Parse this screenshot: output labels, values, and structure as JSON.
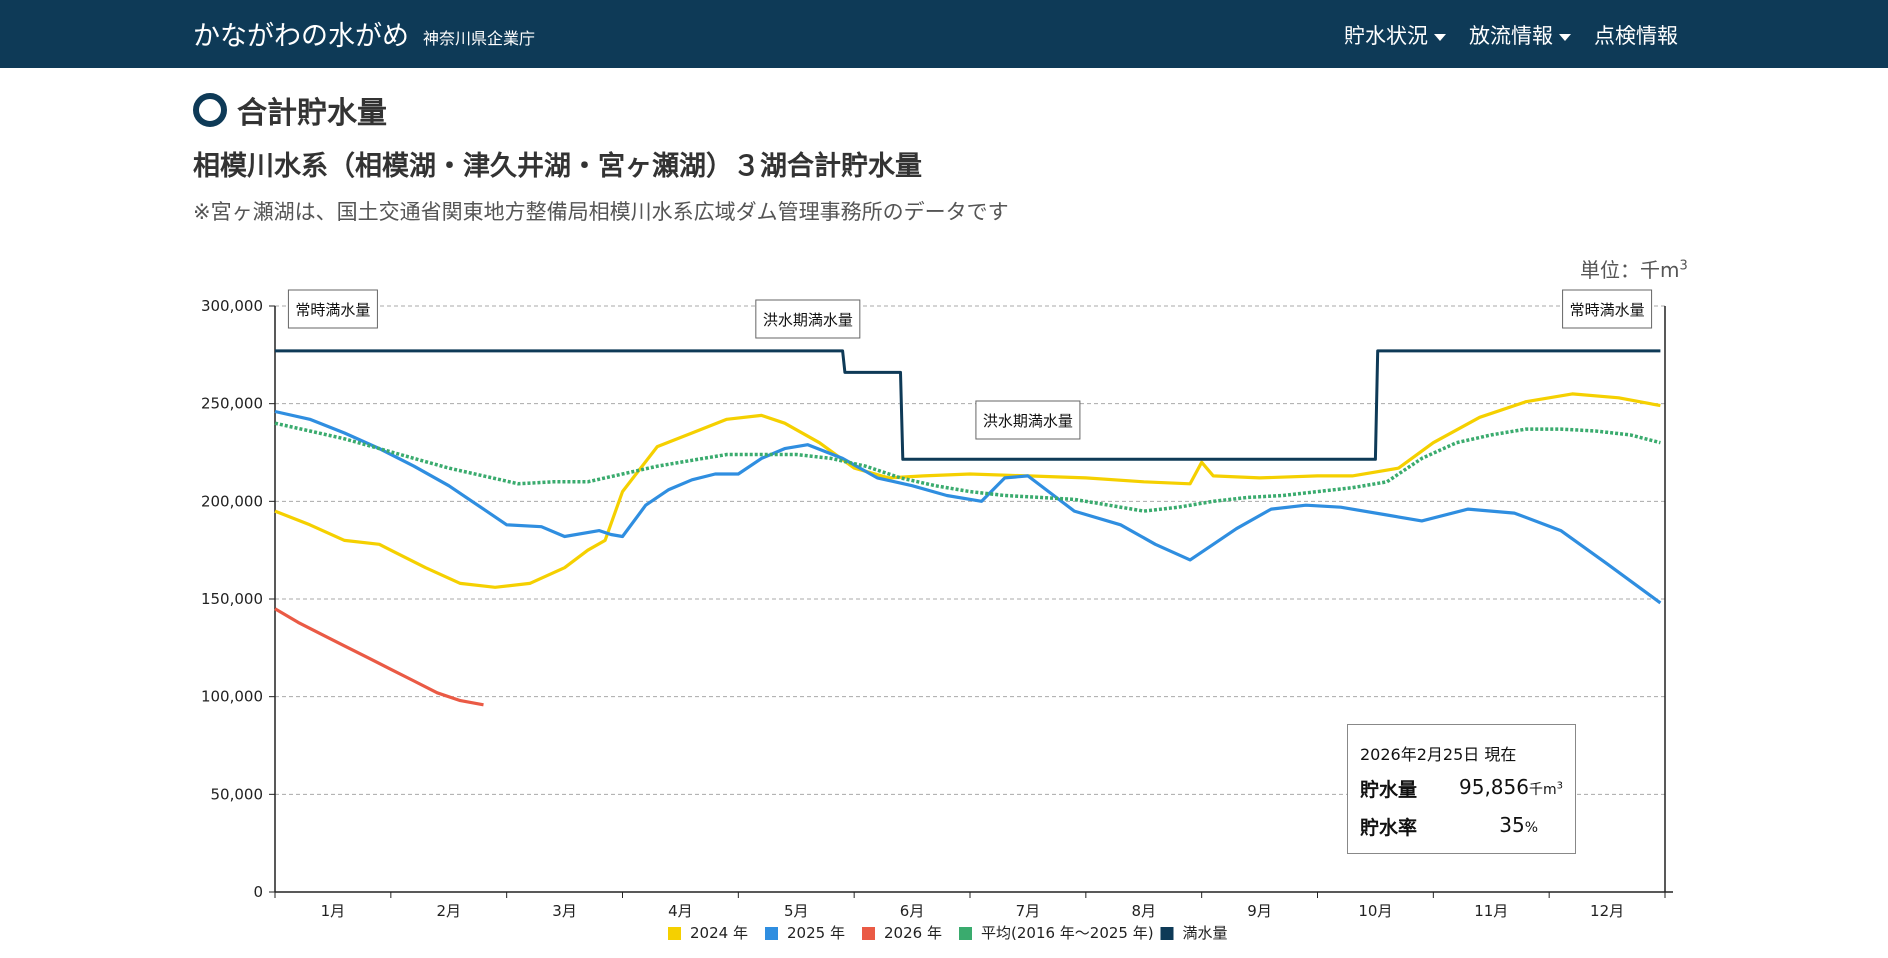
{
  "header": {
    "brand": "かながわの水がめ",
    "brand_sub": "神奈川県企業庁",
    "nav": [
      {
        "label": "貯水状況",
        "dropdown": true
      },
      {
        "label": "放流情報",
        "dropdown": true
      },
      {
        "label": "点検情報",
        "dropdown": false
      }
    ]
  },
  "page": {
    "section_title": "合計貯水量",
    "subtitle": "相模川水系（相模湖・津久井湖・宮ヶ瀬湖）３湖合計貯水量",
    "note": "※宮ヶ瀬湖は、国土交通省関東地方整備局相模川水系広域ダム管理事務所のデータです",
    "unit_label": "単位：千m",
    "unit_sup": "3"
  },
  "info_box": {
    "date": "2026年2月25日 現在",
    "storage_label": "貯水量",
    "storage_value": "95,856",
    "storage_unit": "千m",
    "storage_unit_sup": "3",
    "rate_label": "貯水率",
    "rate_value": "35",
    "rate_unit": "%"
  },
  "colors": {
    "navbar": "#0e3a57",
    "y2024": "#f5d000",
    "y2025": "#2f8ee0",
    "y2026": "#ea5a45",
    "avg": "#3aab6e",
    "full": "#0e3a57"
  },
  "chart_data": {
    "type": "line",
    "ylim": [
      0,
      300000
    ],
    "yticks": [
      "0",
      "50,000",
      "100,000",
      "150,000",
      "200,000",
      "250,000",
      "300,000"
    ],
    "months": [
      "1月",
      "2月",
      "3月",
      "4月",
      "5月",
      "6月",
      "7月",
      "8月",
      "9月",
      "10月",
      "11月",
      "12月"
    ],
    "grid": "horizontal dashed",
    "legend_position": "bottom",
    "annotations": [
      {
        "text": "常時満水量",
        "x": 1.5
      },
      {
        "text": "洪水期満水量",
        "x": 5.6
      },
      {
        "text": "洪水期満水量",
        "x": 7.5
      },
      {
        "text": "常時満水量",
        "x": 12.5
      }
    ],
    "series": [
      {
        "name": "2024 年",
        "color_key": "y2024",
        "style": "solid",
        "x": [
          1,
          1.3,
          1.6,
          1.9,
          2.0,
          2.3,
          2.6,
          2.9,
          3.2,
          3.5,
          3.7,
          3.85,
          4.0,
          4.3,
          4.6,
          4.9,
          5.2,
          5.4,
          5.7,
          6.0,
          6.3,
          6.6,
          7.0,
          7.5,
          8.0,
          8.5,
          8.9,
          9.0,
          9.1,
          9.5,
          10.0,
          10.3,
          10.7,
          11.0,
          11.4,
          11.8,
          12.2,
          12.6,
          12.96
        ],
        "y": [
          195000,
          188000,
          180000,
          178000,
          175000,
          166000,
          158000,
          156000,
          158000,
          166000,
          175000,
          180000,
          205000,
          228000,
          235000,
          242000,
          244000,
          240000,
          230000,
          217000,
          212000,
          213000,
          214000,
          213000,
          212000,
          210000,
          209000,
          220000,
          213000,
          212000,
          213000,
          213000,
          217000,
          230000,
          243000,
          251000,
          255000,
          253000,
          249000
        ]
      },
      {
        "name": "2025 年",
        "color_key": "y2025",
        "style": "solid",
        "x": [
          1,
          1.3,
          1.6,
          1.9,
          2.2,
          2.5,
          2.8,
          3.0,
          3.3,
          3.5,
          3.8,
          3.9,
          4.0,
          4.2,
          4.4,
          4.6,
          4.8,
          5.0,
          5.2,
          5.4,
          5.6,
          5.9,
          6.2,
          6.5,
          6.8,
          7.1,
          7.3,
          7.5,
          7.7,
          7.9,
          8.3,
          8.6,
          8.9,
          9.1,
          9.3,
          9.6,
          9.9,
          10.2,
          10.6,
          10.9,
          11.3,
          11.7,
          12.1,
          12.5,
          12.96
        ],
        "y": [
          246000,
          242000,
          235000,
          227000,
          218000,
          208000,
          196000,
          188000,
          187000,
          182000,
          185000,
          183000,
          182000,
          198000,
          206000,
          211000,
          214000,
          214000,
          222000,
          227000,
          229000,
          222000,
          212000,
          208000,
          203000,
          200000,
          212000,
          213000,
          204000,
          195000,
          188000,
          178000,
          170000,
          178000,
          186000,
          196000,
          198000,
          197000,
          193000,
          190000,
          196000,
          194000,
          185000,
          168000,
          148000
        ]
      },
      {
        "name": "2026 年",
        "color_key": "y2026",
        "style": "solid",
        "x": [
          1,
          1.2,
          1.4,
          1.6,
          1.8,
          2.0,
          2.2,
          2.4,
          2.6,
          2.8
        ],
        "y": [
          145000,
          138000,
          132000,
          126000,
          120000,
          114000,
          108000,
          102000,
          98000,
          95856
        ]
      },
      {
        "name": "平均(2016 年～2025 年)",
        "color_key": "avg",
        "style": "dotted",
        "x": [
          1,
          1.3,
          1.6,
          1.9,
          2.2,
          2.5,
          2.8,
          3.1,
          3.4,
          3.7,
          4.0,
          4.3,
          4.6,
          4.9,
          5.2,
          5.5,
          5.8,
          6.1,
          6.4,
          6.7,
          7.0,
          7.3,
          7.6,
          7.9,
          8.2,
          8.5,
          8.8,
          9.1,
          9.4,
          9.7,
          10.0,
          10.3,
          10.6,
          10.9,
          11.2,
          11.5,
          11.8,
          12.1,
          12.4,
          12.7,
          12.96
        ],
        "y": [
          240000,
          236000,
          232000,
          227000,
          222000,
          217000,
          213000,
          209000,
          210000,
          210000,
          214000,
          218000,
          221000,
          224000,
          224000,
          224000,
          222000,
          218000,
          212000,
          208000,
          205000,
          203000,
          202000,
          201000,
          198000,
          195000,
          197000,
          200000,
          202000,
          203000,
          205000,
          207000,
          210000,
          222000,
          230000,
          234000,
          237000,
          237000,
          236000,
          234000,
          230000
        ]
      },
      {
        "name": "満水量",
        "color_key": "full",
        "style": "step",
        "x": [
          1,
          5.9,
          5.92,
          6.4,
          6.42,
          10.5,
          10.52,
          12.96
        ],
        "y": [
          277000,
          277000,
          266000,
          266000,
          221500,
          221500,
          277000,
          277000
        ]
      }
    ]
  }
}
